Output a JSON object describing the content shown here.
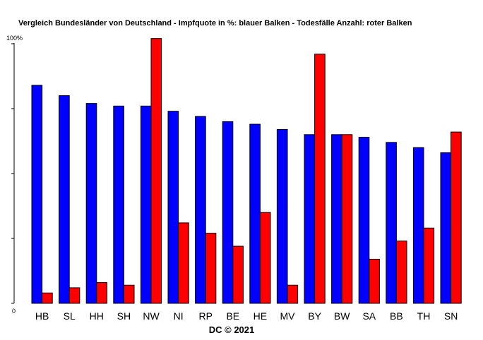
{
  "chart_data": {
    "type": "bar",
    "title": "Vergleich Bundesländer von Deutschland - Impfquote in %: blauer Balken - Todesfälle Anzahl: roter Balken",
    "ytick_top": "100%",
    "ytick_bottom": "0",
    "ylim": [
      0,
      100
    ],
    "ytick_values": [
      0,
      25,
      50,
      75,
      100
    ],
    "credit": "DC © 2021",
    "categories": [
      "HB",
      "SL",
      "HH",
      "SH",
      "NW",
      "NI",
      "RP",
      "BE",
      "HE",
      "MV",
      "BY",
      "BW",
      "SA",
      "BB",
      "TH",
      "SN"
    ],
    "series": [
      {
        "color": "#0000ff",
        "values": [
          84,
          80,
          77,
          76,
          76,
          74,
          72,
          70,
          69,
          67,
          65,
          65,
          64,
          62,
          60,
          58
        ]
      },
      {
        "color": "#ff0000",
        "values": [
          4,
          6,
          8,
          7,
          102,
          31,
          27,
          22,
          35,
          7,
          96,
          65,
          17,
          24,
          29,
          66
        ]
      }
    ],
    "grid": false
  }
}
